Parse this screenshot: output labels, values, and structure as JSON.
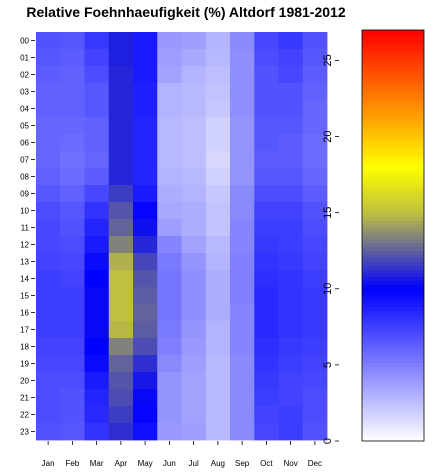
{
  "chart_data": {
    "type": "heatmap",
    "title": "Relative Foehnhaeufigkeit (%) Altdorf 1981-2012",
    "xlabel": "",
    "ylabel": "",
    "x_categories": [
      "Jan",
      "Feb",
      "Mar",
      "Apr",
      "May",
      "Jun",
      "Jul",
      "Aug",
      "Sep",
      "Oct",
      "Nov",
      "Dec"
    ],
    "y_categories": [
      "00",
      "01",
      "02",
      "03",
      "04",
      "05",
      "06",
      "07",
      "08",
      "09",
      "10",
      "11",
      "12",
      "13",
      "14",
      "15",
      "16",
      "17",
      "18",
      "19",
      "20",
      "21",
      "22",
      "23"
    ],
    "values": [
      [
        6.8,
        6.6,
        7.8,
        10.8,
        9.0,
        4.0,
        3.8,
        3.0,
        4.6,
        7.2,
        7.8,
        6.8
      ],
      [
        6.6,
        6.4,
        7.4,
        10.8,
        9.0,
        3.8,
        3.4,
        2.8,
        4.4,
        7.0,
        7.4,
        6.6
      ],
      [
        6.4,
        6.2,
        7.0,
        11.0,
        9.0,
        3.6,
        3.0,
        2.6,
        4.4,
        6.8,
        7.2,
        6.4
      ],
      [
        6.2,
        6.2,
        6.6,
        11.0,
        8.8,
        3.0,
        2.8,
        2.4,
        4.4,
        6.8,
        6.8,
        6.2
      ],
      [
        6.2,
        6.2,
        6.6,
        11.0,
        8.8,
        3.0,
        2.8,
        2.2,
        4.4,
        6.8,
        6.8,
        6.0
      ],
      [
        6.0,
        6.0,
        6.2,
        11.0,
        8.6,
        2.8,
        2.6,
        1.8,
        4.2,
        6.6,
        6.6,
        6.0
      ],
      [
        6.0,
        5.8,
        6.2,
        11.0,
        8.6,
        2.8,
        2.6,
        1.8,
        4.2,
        6.6,
        6.4,
        5.8
      ],
      [
        6.0,
        5.6,
        6.0,
        11.0,
        8.6,
        2.8,
        2.6,
        1.6,
        4.2,
        6.4,
        6.4,
        5.8
      ],
      [
        6.2,
        5.8,
        6.4,
        11.0,
        8.6,
        3.0,
        2.8,
        1.8,
        4.2,
        6.6,
        6.6,
        6.0
      ],
      [
        6.6,
        6.2,
        7.2,
        11.6,
        9.0,
        3.2,
        3.0,
        2.2,
        4.6,
        7.0,
        7.0,
        6.4
      ],
      [
        7.0,
        6.6,
        8.0,
        12.2,
        9.8,
        3.4,
        3.2,
        2.4,
        4.6,
        7.4,
        7.4,
        6.8
      ],
      [
        7.2,
        6.8,
        8.6,
        12.6,
        10.4,
        3.8,
        3.2,
        2.4,
        4.8,
        7.6,
        7.6,
        7.0
      ],
      [
        7.2,
        7.0,
        9.0,
        13.4,
        11.0,
        4.8,
        3.6,
        2.8,
        4.8,
        7.8,
        7.6,
        7.2
      ],
      [
        7.4,
        7.2,
        9.6,
        14.6,
        11.8,
        5.2,
        4.2,
        3.0,
        5.0,
        8.0,
        7.8,
        7.4
      ],
      [
        7.6,
        7.4,
        10.0,
        15.0,
        12.2,
        5.4,
        4.4,
        3.2,
        5.0,
        8.2,
        8.0,
        7.6
      ],
      [
        7.6,
        7.6,
        10.2,
        15.0,
        12.4,
        5.4,
        4.4,
        3.2,
        5.0,
        8.4,
        8.0,
        7.8
      ],
      [
        7.6,
        7.6,
        10.2,
        15.0,
        12.6,
        5.4,
        4.4,
        3.2,
        4.8,
        8.4,
        8.0,
        7.8
      ],
      [
        7.6,
        7.6,
        10.2,
        14.8,
        12.4,
        5.2,
        4.2,
        3.0,
        4.8,
        8.4,
        8.0,
        7.8
      ],
      [
        7.4,
        7.4,
        10.0,
        13.4,
        12.0,
        5.0,
        4.0,
        3.0,
        4.8,
        8.2,
        7.8,
        7.6
      ],
      [
        7.2,
        7.2,
        9.6,
        12.6,
        11.2,
        4.6,
        3.8,
        2.8,
        4.6,
        8.0,
        7.6,
        7.4
      ],
      [
        7.0,
        7.0,
        9.0,
        12.2,
        10.6,
        4.2,
        3.6,
        2.8,
        4.6,
        7.8,
        7.4,
        7.2
      ],
      [
        7.0,
        6.8,
        8.6,
        12.0,
        10.2,
        4.2,
        3.6,
        2.8,
        4.6,
        7.6,
        7.4,
        7.0
      ],
      [
        7.0,
        6.8,
        8.4,
        11.6,
        9.8,
        4.2,
        3.6,
        2.8,
        4.6,
        7.4,
        7.6,
        7.0
      ],
      [
        6.8,
        6.6,
        8.0,
        11.2,
        9.4,
        4.0,
        3.8,
        2.8,
        4.6,
        7.2,
        7.6,
        6.8
      ]
    ],
    "colorbar": {
      "range": [
        0,
        27
      ],
      "ticks": [
        {
          "value": 0,
          "label": "0"
        },
        {
          "value": 5,
          "label": "5"
        },
        {
          "value": 10,
          "label": "10"
        },
        {
          "value": 15,
          "label": "15"
        },
        {
          "value": 20,
          "label": "20"
        },
        {
          "value": 25,
          "label": "25"
        }
      ],
      "colors": [
        {
          "value": 0,
          "color": "#ffffff"
        },
        {
          "value": 10,
          "color": "#0000ff"
        },
        {
          "value": 15,
          "color": "#bfbf40"
        },
        {
          "value": 18,
          "color": "#ffff00"
        },
        {
          "value": 27,
          "color": "#ff0000"
        }
      ]
    },
    "legend_position": "right"
  }
}
